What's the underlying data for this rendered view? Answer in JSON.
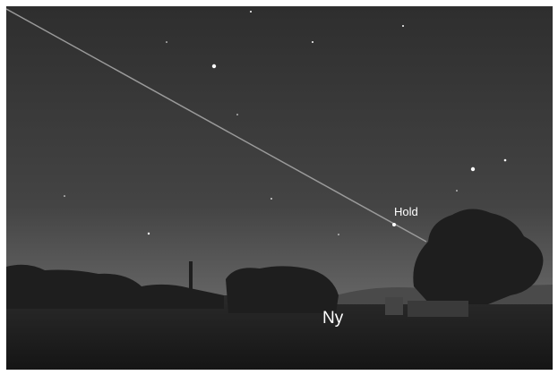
{
  "labels": {
    "star": "Hold",
    "horizon": "Ny"
  }
}
